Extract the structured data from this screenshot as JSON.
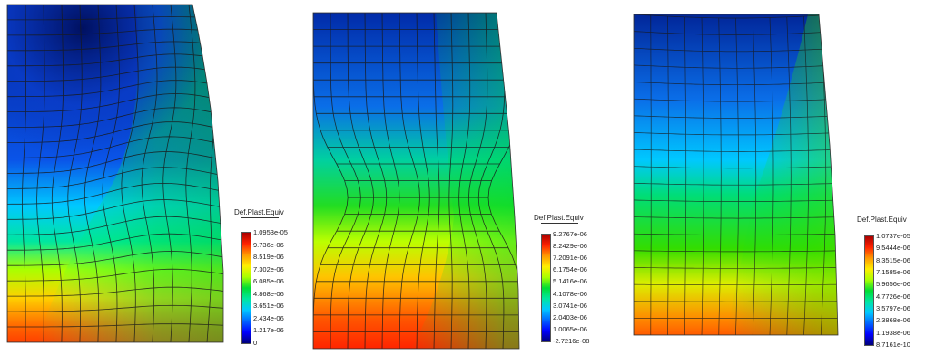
{
  "panels": [
    {
      "legend": {
        "title": "Def.Plast.Equiv",
        "labels": [
          "1.0953e-05",
          "9.736e-06",
          "8.519e-06",
          "7.302e-06",
          "6.085e-06",
          "4.868e-06",
          "3.651e-06",
          "2.434e-06",
          "1.217e-06",
          "0"
        ]
      }
    },
    {
      "legend": {
        "title": "Def.Plast.Equiv",
        "labels": [
          "9.2767e-06",
          "8.2429e-06",
          "7.2091e-06",
          "6.1754e-06",
          "5.1416e-06",
          "4.1078e-06",
          "3.0741e-06",
          "2.0403e-06",
          "1.0065e-06",
          "-2.7216e-08"
        ]
      }
    },
    {
      "legend": {
        "title": "Def.Plast.Equiv",
        "labels": [
          "1.0737e-05",
          "9.5444e-06",
          "8.3515e-06",
          "7.1585e-06",
          "5.9656e-06",
          "4.7726e-06",
          "3.5797e-06",
          "2.3868e-06",
          "1.1938e-06",
          "8.7161e-10"
        ]
      }
    }
  ],
  "colors": {
    "scale": [
      "#00007a",
      "#0000ff",
      "#0066ff",
      "#00c8ff",
      "#00e6a0",
      "#00dd33",
      "#aaff00",
      "#ffee00",
      "#ff9900",
      "#ff2200",
      "#aa0000"
    ]
  }
}
